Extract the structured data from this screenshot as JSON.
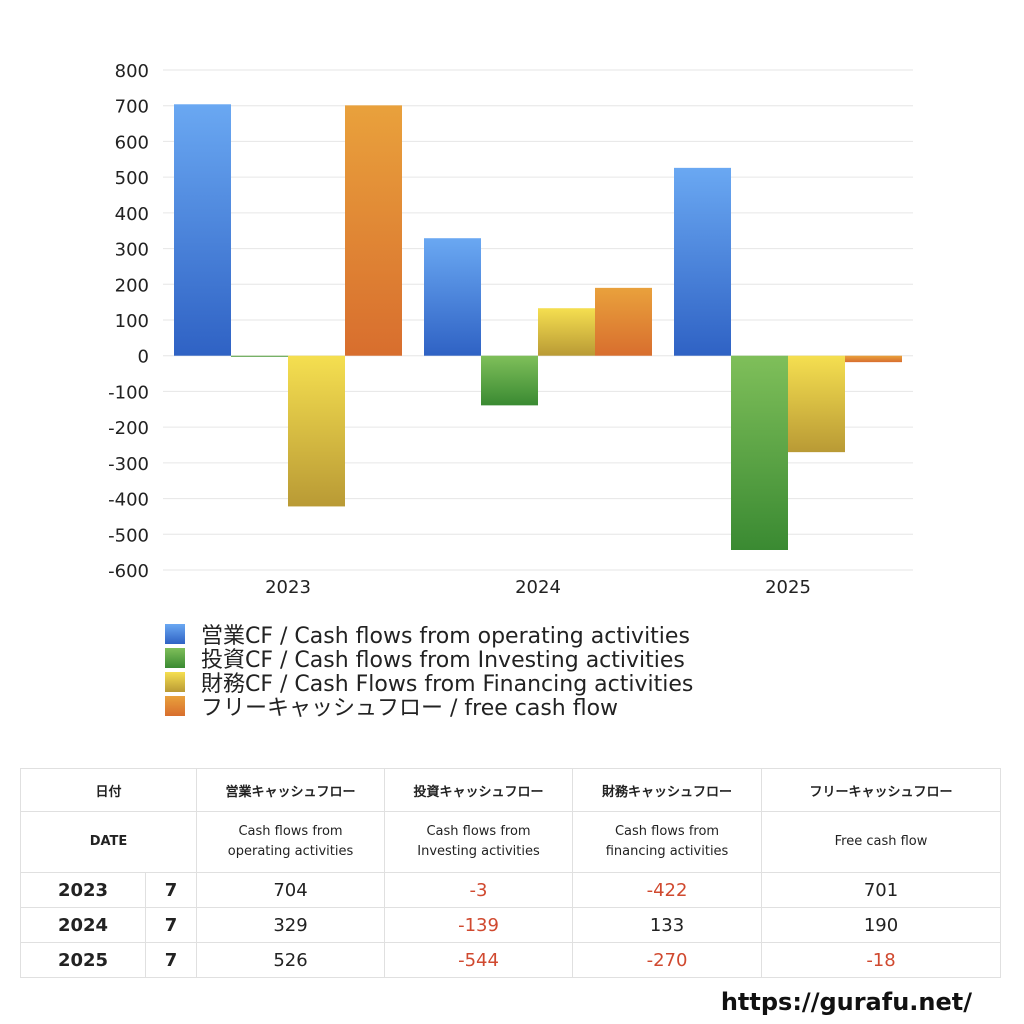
{
  "chart_data": {
    "type": "bar",
    "categories": [
      "2023",
      "2024",
      "2025"
    ],
    "series": [
      {
        "name": "営業CF / Cash flows from operating activities",
        "values": [
          704,
          329,
          526
        ]
      },
      {
        "name": "投資CF / Cash flows from Investing activities",
        "values": [
          -3,
          -139,
          -544
        ]
      },
      {
        "name": "財務CF / Cash Flows from Financing activities",
        "values": [
          -422,
          133,
          -270
        ]
      },
      {
        "name": "フリーキャッシュフロー / free cash flow",
        "values": [
          701,
          190,
          -18
        ]
      }
    ],
    "ylim": [
      -600,
      800
    ],
    "yticks": [
      800,
      700,
      600,
      500,
      400,
      300,
      200,
      100,
      0,
      -100,
      -200,
      -300,
      -400,
      -500,
      -600
    ],
    "grid": true,
    "legend": "bottom",
    "colors": {
      "operating": [
        "#6aa8f2",
        "#2f62c4"
      ],
      "investing": [
        "#7fbf5a",
        "#3a8a32"
      ],
      "financing": [
        "#f5df50",
        "#b99a35"
      ],
      "free": [
        "#e9a13c",
        "#d86e2e"
      ]
    }
  },
  "table": {
    "headers_ja": [
      "日付",
      "営業キャッシュフロー",
      "投資キャッシュフロー",
      "財務キャッシュフロー",
      "フリーキャッシュフロー"
    ],
    "headers_en": {
      "date": "DATE",
      "operating": [
        "Cash flows from",
        "operating activities"
      ],
      "investing": [
        "Cash flows from",
        "Investing activities"
      ],
      "financing": [
        "Cash flows from",
        "financing activities"
      ],
      "free": "Free cash flow"
    },
    "rows": [
      {
        "year": "2023",
        "month": "7",
        "values": [
          "704",
          "-3",
          "-422",
          "701"
        ]
      },
      {
        "year": "2024",
        "month": "7",
        "values": [
          "329",
          "-139",
          "133",
          "190"
        ]
      },
      {
        "year": "2025",
        "month": "7",
        "values": [
          "526",
          "-544",
          "-270",
          "-18"
        ]
      }
    ]
  },
  "site_url": "https://gurafu.net/"
}
